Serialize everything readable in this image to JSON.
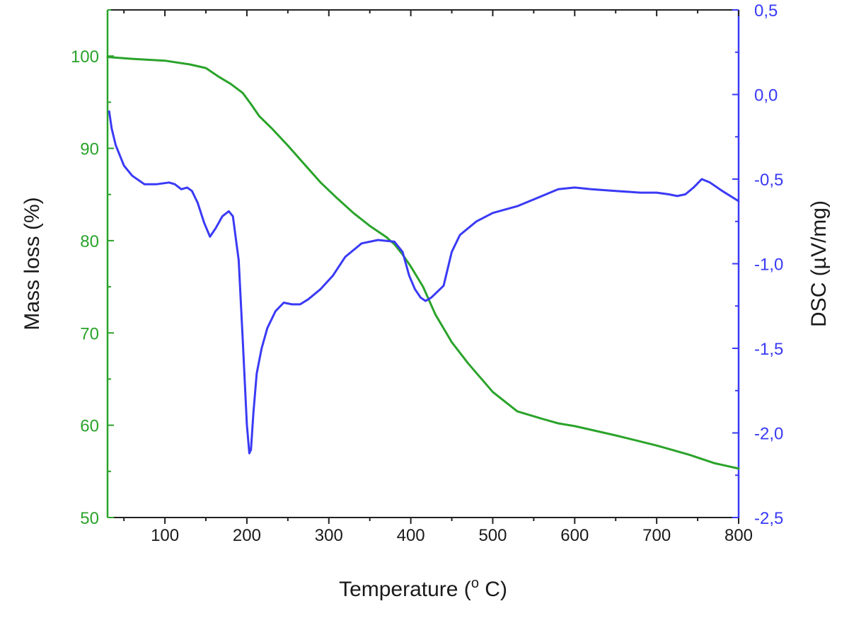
{
  "chart_data": {
    "type": "line",
    "xlabel": "Temperature (",
    "xlabel_sup": "o",
    "xlabel_tail": " C)",
    "ylabel_left": "Mass loss (%)",
    "ylabel_right": "DSC (µV/mg)",
    "x_range": [
      30,
      800
    ],
    "y_left_range": [
      50,
      105
    ],
    "y_right_range": [
      -2.5,
      0.5
    ],
    "x_ticks": [
      {
        "value": 100,
        "label": "100"
      },
      {
        "value": 200,
        "label": "200"
      },
      {
        "value": 300,
        "label": "300"
      },
      {
        "value": 400,
        "label": "400"
      },
      {
        "value": 500,
        "label": "500"
      },
      {
        "value": 600,
        "label": "600"
      },
      {
        "value": 700,
        "label": "700"
      },
      {
        "value": 800,
        "label": "800"
      }
    ],
    "y_left_ticks": [
      {
        "value": 50,
        "label": "50"
      },
      {
        "value": 60,
        "label": "60"
      },
      {
        "value": 70,
        "label": "70"
      },
      {
        "value": 80,
        "label": "80"
      },
      {
        "value": 90,
        "label": "90"
      },
      {
        "value": 100,
        "label": "100"
      }
    ],
    "y_right_ticks": [
      {
        "value": -2.5,
        "label": "-2,5"
      },
      {
        "value": -2.0,
        "label": "-2,0"
      },
      {
        "value": -1.5,
        "label": "-1,5"
      },
      {
        "value": -1.0,
        "label": "-1,0"
      },
      {
        "value": -0.5,
        "label": "-0,5"
      },
      {
        "value": 0.0,
        "label": "0,0"
      },
      {
        "value": 0.5,
        "label": "0,5"
      }
    ],
    "colors": {
      "mass": "#2aa32a",
      "dsc": "#3a3af5",
      "frame": "#222222"
    },
    "grid": false,
    "legend": "none",
    "series": [
      {
        "axis": "left",
        "color": "#2aa32a",
        "x": [
          30,
          60,
          100,
          130,
          150,
          165,
          180,
          195,
          205,
          215,
          230,
          250,
          270,
          290,
          310,
          330,
          350,
          370,
          380,
          390,
          400,
          415,
          430,
          450,
          470,
          500,
          530,
          560,
          580,
          600,
          650,
          700,
          740,
          770,
          800
        ],
        "y": [
          99.9,
          99.7,
          99.5,
          99.1,
          98.7,
          97.8,
          97.0,
          96.0,
          94.8,
          93.5,
          92.2,
          90.3,
          88.3,
          86.3,
          84.6,
          83.0,
          81.6,
          80.4,
          79.6,
          78.5,
          77.2,
          75.0,
          72.0,
          69.0,
          66.7,
          63.6,
          61.5,
          60.7,
          60.2,
          59.9,
          58.9,
          57.8,
          56.8,
          55.9,
          55.3
        ]
      },
      {
        "axis": "right",
        "color": "#3a3af5",
        "x": [
          32,
          35,
          40,
          50,
          60,
          75,
          90,
          105,
          112,
          120,
          127,
          133,
          140,
          148,
          155,
          162,
          170,
          178,
          183,
          190,
          195,
          200,
          203,
          205,
          208,
          212,
          218,
          225,
          235,
          245,
          255,
          265,
          275,
          290,
          305,
          320,
          340,
          360,
          380,
          390,
          398,
          405,
          412,
          418,
          425,
          440,
          450,
          460,
          480,
          500,
          530,
          560,
          580,
          600,
          620,
          650,
          680,
          700,
          715,
          725,
          735,
          745,
          755,
          765,
          780,
          800
        ],
        "y": [
          -0.1,
          -0.2,
          -0.3,
          -0.42,
          -0.48,
          -0.53,
          -0.53,
          -0.52,
          -0.53,
          -0.56,
          -0.55,
          -0.57,
          -0.64,
          -0.76,
          -0.84,
          -0.79,
          -0.72,
          -0.69,
          -0.72,
          -0.98,
          -1.45,
          -1.95,
          -2.12,
          -2.1,
          -1.88,
          -1.65,
          -1.5,
          -1.38,
          -1.28,
          -1.23,
          -1.24,
          -1.24,
          -1.21,
          -1.15,
          -1.07,
          -0.96,
          -0.88,
          -0.86,
          -0.87,
          -0.93,
          -1.07,
          -1.15,
          -1.2,
          -1.22,
          -1.2,
          -1.13,
          -0.93,
          -0.83,
          -0.75,
          -0.7,
          -0.66,
          -0.6,
          -0.56,
          -0.55,
          -0.56,
          -0.57,
          -0.58,
          -0.58,
          -0.59,
          -0.6,
          -0.59,
          -0.55,
          -0.5,
          -0.52,
          -0.57,
          -0.63
        ]
      }
    ]
  }
}
